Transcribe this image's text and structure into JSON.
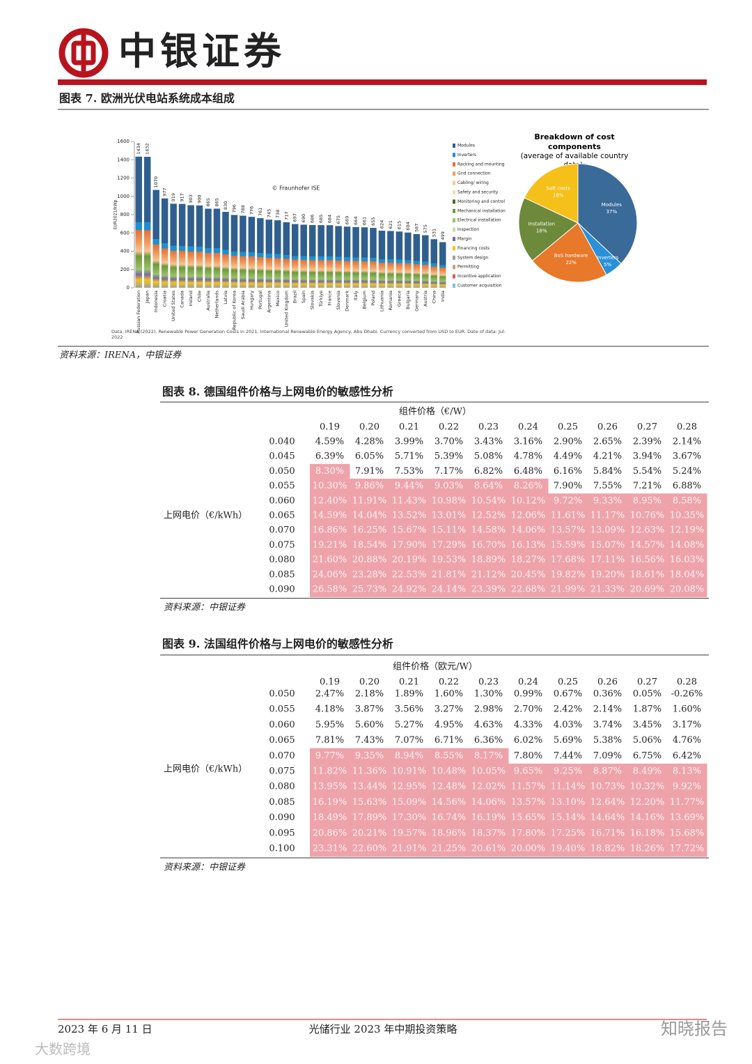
{
  "header": {
    "brand": "中银证券"
  },
  "figure7": {
    "title": "图表 7. 欧洲光伏电站系统成本组成",
    "source": "资料来源：IRENA，中银证券",
    "chart_data": [
      {
        "type": "bar",
        "ylabel": "EUR2021/kWp",
        "watermark": "© Fraunhofer ISE",
        "note": "Data: IRENA (2022), Renewable Power Generation Costs in 2021, International Renewable Energy Agency, Abu Dhabi. Currency converted from USD to EUR. Date of data: Jul-2022",
        "categories": [
          "Russian Federation",
          "Japan",
          "Indonesia",
          "Croatia",
          "United States",
          "Canada",
          "Ireland",
          "Chile",
          "Australia",
          "Netherlands",
          "Latvia",
          "Republic of Korea",
          "Saudi Arabia",
          "Hungary",
          "Portugal",
          "Argentina",
          "Mexico",
          "United Kingdom",
          "Brazil",
          "Spain",
          "Slovakia",
          "Türkiye",
          "France",
          "Slovenia",
          "Denmark",
          "Italy",
          "Belgium",
          "Poland",
          "Lithuania",
          "Romania",
          "Greece",
          "Bulgaria",
          "Germany",
          "Austria",
          "China",
          "India"
        ],
        "values": [
          1434,
          1432,
          1070,
          977,
          919,
          917,
          903,
          900,
          865,
          865,
          830,
          796,
          788,
          776,
          761,
          745,
          738,
          717,
          697,
          690,
          686,
          685,
          684,
          675,
          669,
          664,
          661,
          655,
          624,
          621,
          615,
          604,
          587,
          575,
          531,
          499
        ],
        "ylim": [
          0,
          1600
        ],
        "yticks": [
          0,
          200,
          400,
          600,
          800,
          1000,
          1200,
          1400,
          1600
        ],
        "legend": [
          {
            "name": "Modules",
            "color": "#2f5f8f"
          },
          {
            "name": "Inverters",
            "color": "#1f8fd0"
          },
          {
            "name": "Racking and mounting",
            "color": "#e0703a"
          },
          {
            "name": "Grid connection",
            "color": "#f0a060"
          },
          {
            "name": "Cabling/ wiring",
            "color": "#f6c39a"
          },
          {
            "name": "Safety and security",
            "color": "#f8dcc0"
          },
          {
            "name": "Monitoring and control",
            "color": "#4b6b2a"
          },
          {
            "name": "Mechanical installation",
            "color": "#6e9a3c"
          },
          {
            "name": "Electrical installation",
            "color": "#9cc26a"
          },
          {
            "name": "Inspection",
            "color": "#c6e09c"
          },
          {
            "name": "Margin",
            "color": "#7a6aa8"
          },
          {
            "name": "Financing costs",
            "color": "#f2c21a"
          },
          {
            "name": "System design",
            "color": "#a0a0a0"
          },
          {
            "name": "Permitting",
            "color": "#c8a070"
          },
          {
            "name": "Incentive application",
            "color": "#d06060"
          },
          {
            "name": "Customer acquisition",
            "color": "#80c0e0"
          }
        ]
      },
      {
        "type": "pie",
        "title": "Breakdown of cost components",
        "subtitle": "(average of available country data):",
        "categories": [
          "Modules",
          "Inverters",
          "BoS hardware",
          "Installation",
          "Soft costs"
        ],
        "values": [
          37,
          5,
          22,
          18,
          18
        ],
        "value_labels": [
          "37%",
          "5%",
          "22%",
          "18%",
          "18%"
        ],
        "colors": [
          "#3a6a98",
          "#2a90d8",
          "#e8782a",
          "#6c8a3a",
          "#f5c01a"
        ]
      }
    ]
  },
  "tables": [
    {
      "title": "图表 8. 德国组件价格与上网电价的敏感性分析",
      "col_header": "组件价格（€/W）",
      "row_header": "上网电价（€/kWh）",
      "columns": [
        "0.19",
        "0.20",
        "0.21",
        "0.22",
        "0.23",
        "0.24",
        "0.25",
        "0.26",
        "0.27",
        "0.28"
      ],
      "highlight_min": 8,
      "highlight_color": "#eea3ab",
      "rows": [
        {
          "label": "0.040",
          "cells": [
            "4.59%",
            "4.28%",
            "3.99%",
            "3.70%",
            "3.43%",
            "3.16%",
            "2.90%",
            "2.65%",
            "2.39%",
            "2.14%"
          ]
        },
        {
          "label": "0.045",
          "cells": [
            "6.39%",
            "6.05%",
            "5.71%",
            "5.39%",
            "5.08%",
            "4.78%",
            "4.49%",
            "4.21%",
            "3.94%",
            "3.67%"
          ]
        },
        {
          "label": "0.050",
          "cells": [
            "8.30%",
            "7.91%",
            "7.53%",
            "7.17%",
            "6.82%",
            "6.48%",
            "6.16%",
            "5.84%",
            "5.54%",
            "5.24%"
          ]
        },
        {
          "label": "0.055",
          "cells": [
            "10.30%",
            "9.86%",
            "9.44%",
            "9.03%",
            "8.64%",
            "8.26%",
            "7.90%",
            "7.55%",
            "7.21%",
            "6.88%"
          ]
        },
        {
          "label": "0.060",
          "cells": [
            "12.40%",
            "11.91%",
            "11.43%",
            "10.98%",
            "10.54%",
            "10.12%",
            "9.72%",
            "9.33%",
            "8.95%",
            "8.58%"
          ]
        },
        {
          "label": "0.065",
          "cells": [
            "14.59%",
            "14.04%",
            "13.52%",
            "13.01%",
            "12.52%",
            "12.06%",
            "11.61%",
            "11.17%",
            "10.76%",
            "10.35%"
          ]
        },
        {
          "label": "0.070",
          "cells": [
            "16.86%",
            "16.25%",
            "15.67%",
            "15.11%",
            "14.58%",
            "14.06%",
            "13.57%",
            "13.09%",
            "12.63%",
            "12.19%"
          ]
        },
        {
          "label": "0.075",
          "cells": [
            "19.21%",
            "18.54%",
            "17.90%",
            "17.29%",
            "16.70%",
            "16.13%",
            "15.59%",
            "15.07%",
            "14.57%",
            "14.08%"
          ]
        },
        {
          "label": "0.080",
          "cells": [
            "21.60%",
            "20.88%",
            "20.19%",
            "19.53%",
            "18.89%",
            "18.27%",
            "17.68%",
            "17.11%",
            "16.56%",
            "16.03%"
          ]
        },
        {
          "label": "0.085",
          "cells": [
            "24.06%",
            "23.28%",
            "22.53%",
            "21.81%",
            "21.12%",
            "20.45%",
            "19.82%",
            "19.20%",
            "18.61%",
            "18.04%"
          ]
        },
        {
          "label": "0.090",
          "cells": [
            "26.58%",
            "25.73%",
            "24.92%",
            "24.14%",
            "23.39%",
            "22.68%",
            "21.99%",
            "21.33%",
            "20.69%",
            "20.08%"
          ]
        }
      ],
      "source": "资料来源：中银证券"
    },
    {
      "title": "图表 9. 法国组件价格与上网电价的敏感性分析",
      "col_header": "组件价格（欧元/W）",
      "row_header": "上网电价（€/kWh）",
      "columns": [
        "0.19",
        "0.20",
        "0.21",
        "0.22",
        "0.23",
        "0.24",
        "0.25",
        "0.26",
        "0.27",
        "0.28"
      ],
      "highlight_min": 8,
      "highlight_color": "#eea3ab",
      "rows": [
        {
          "label": "0.050",
          "cells": [
            "2.47%",
            "2.18%",
            "1.89%",
            "1.60%",
            "1.30%",
            "0.99%",
            "0.67%",
            "0.36%",
            "0.05%",
            "-0.26%"
          ]
        },
        {
          "label": "0.055",
          "cells": [
            "4.18%",
            "3.87%",
            "3.56%",
            "3.27%",
            "2.98%",
            "2.70%",
            "2.42%",
            "2.14%",
            "1.87%",
            "1.60%"
          ]
        },
        {
          "label": "0.060",
          "cells": [
            "5.95%",
            "5.60%",
            "5.27%",
            "4.95%",
            "4.63%",
            "4.33%",
            "4.03%",
            "3.74%",
            "3.45%",
            "3.17%"
          ]
        },
        {
          "label": "0.065",
          "cells": [
            "7.81%",
            "7.43%",
            "7.07%",
            "6.71%",
            "6.36%",
            "6.02%",
            "5.69%",
            "5.38%",
            "5.06%",
            "4.76%"
          ]
        },
        {
          "label": "0.070",
          "cells": [
            "9.77%",
            "9.35%",
            "8.94%",
            "8.55%",
            "8.17%",
            "7.80%",
            "7.44%",
            "7.09%",
            "6.75%",
            "6.42%"
          ]
        },
        {
          "label": "0.075",
          "cells": [
            "11.82%",
            "11.36%",
            "10.91%",
            "10.48%",
            "10.05%",
            "9.65%",
            "9.25%",
            "8.87%",
            "8.49%",
            "8.13%"
          ]
        },
        {
          "label": "0.080",
          "cells": [
            "13.95%",
            "13.44%",
            "12.95%",
            "12.48%",
            "12.02%",
            "11.57%",
            "11.14%",
            "10.73%",
            "10.32%",
            "9.92%"
          ]
        },
        {
          "label": "0.085",
          "cells": [
            "16.19%",
            "15.63%",
            "15.09%",
            "14.56%",
            "14.06%",
            "13.57%",
            "13.10%",
            "12.64%",
            "12.20%",
            "11.77%"
          ]
        },
        {
          "label": "0.090",
          "cells": [
            "18.49%",
            "17.89%",
            "17.30%",
            "16.74%",
            "16.19%",
            "15.65%",
            "15.14%",
            "14.64%",
            "14.16%",
            "13.69%"
          ]
        },
        {
          "label": "0.095",
          "cells": [
            "20.86%",
            "20.21%",
            "19.57%",
            "18.96%",
            "18.37%",
            "17.80%",
            "17.25%",
            "16.71%",
            "16.18%",
            "15.68%"
          ]
        },
        {
          "label": "0.100",
          "cells": [
            "23.31%",
            "22.60%",
            "21.91%",
            "21.25%",
            "20.61%",
            "20.00%",
            "19.40%",
            "18.82%",
            "18.26%",
            "17.72%"
          ]
        }
      ],
      "source": "资料来源：中银证券"
    }
  ],
  "footer": {
    "date": "2023 年 6 月 11 日",
    "title": "光储行业 2023 年中期投资策略",
    "watermark_right": "知晓报告",
    "watermark_left": "大数跨境"
  }
}
